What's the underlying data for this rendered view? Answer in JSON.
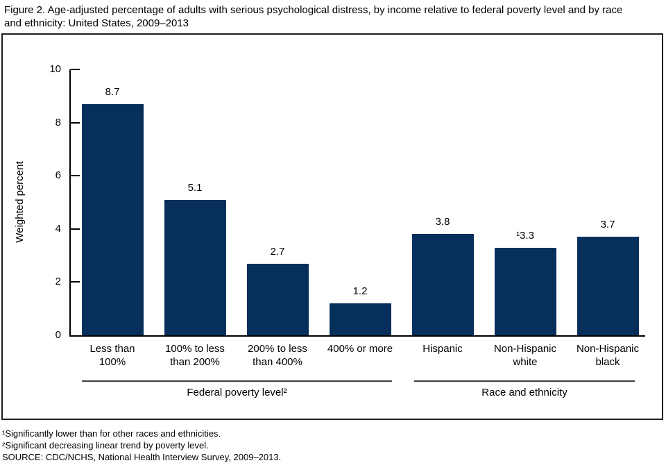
{
  "page": {
    "title": "Figure 2. Age-adjusted percentage of adults with serious psychological distress, by income relative to federal poverty level and by race and ethnicity: United States, 2009–2013"
  },
  "chart_data": {
    "type": "bar",
    "title": "Figure 2. Age-adjusted percentage of adults with serious psychological distress, by income relative to federal poverty level and by race and ethnicity: United States, 2009–2013",
    "xlabel": "",
    "ylabel": "Weighted percent",
    "ylim": [
      0,
      10
    ],
    "yticks": [
      0,
      2,
      4,
      6,
      8,
      10
    ],
    "grid": false,
    "legend": false,
    "bar_color": "#072f5c",
    "groups": [
      {
        "label": "Federal poverty level²",
        "categories": [
          "Less than 100%",
          "100% to less than 200%",
          "200% to less than 400%",
          "400% or more"
        ],
        "category_lines": [
          [
            "Less than",
            "100%"
          ],
          [
            "100% to less",
            "than 200%"
          ],
          [
            "200% to less",
            "than 400%"
          ],
          [
            "400% or more"
          ]
        ],
        "values": [
          8.7,
          5.1,
          2.7,
          1.2
        ],
        "value_labels": [
          "8.7",
          "5.1",
          "2.7",
          "1.2"
        ]
      },
      {
        "label": "Race and ethnicity",
        "categories": [
          "Hispanic",
          "Non-Hispanic white",
          "Non-Hispanic black"
        ],
        "category_lines": [
          [
            "Hispanic"
          ],
          [
            "Non-Hispanic",
            "white"
          ],
          [
            "Non-Hispanic",
            "black"
          ]
        ],
        "values": [
          3.8,
          3.3,
          3.7
        ],
        "value_labels": [
          "3.8",
          "¹3.3",
          "3.7"
        ]
      }
    ]
  },
  "footnotes": [
    "¹Significantly lower than for other races and ethnicities.",
    "²Significant decreasing linear trend by poverty level.",
    "SOURCE: CDC/NCHS, National Health Interview Survey, 2009–2013."
  ]
}
